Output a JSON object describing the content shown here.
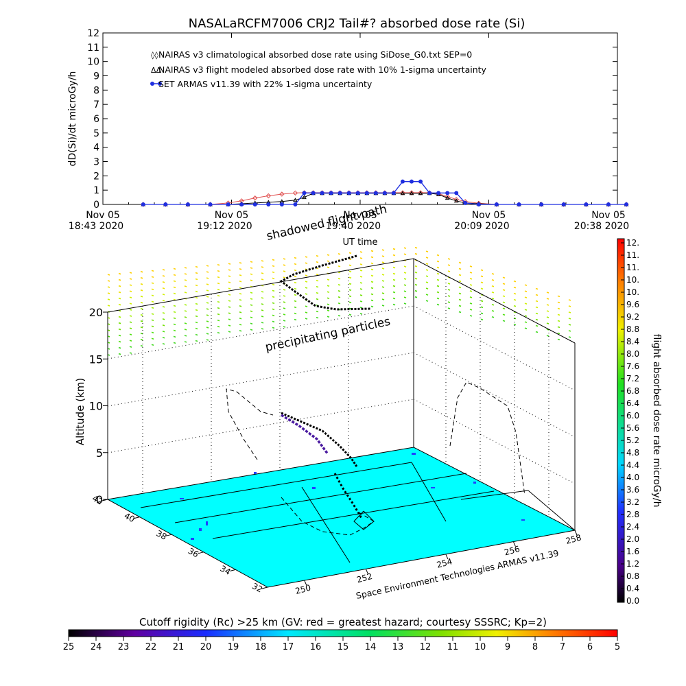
{
  "colors": {
    "climatological": "#e05050",
    "flight_modeled": "#000000",
    "armas": "#1f2fe0",
    "ground": "#00ffff"
  },
  "chart_data": [
    {
      "type": "line",
      "title": "NASALaRCFM7006  CRJ2 Tail#? absorbed dose rate (Si)",
      "xlabel": "UT time",
      "ylabel": "dD(Si)/dt microGy/h",
      "ylim": [
        0,
        12
      ],
      "yticks": [
        "0",
        "1",
        "2",
        "3",
        "4",
        "5",
        "6",
        "7",
        "8",
        "9",
        "10",
        "11",
        "12"
      ],
      "xticks": [
        {
          "line1": "Nov 05",
          "line2": "18:43 2020"
        },
        {
          "line1": "Nov 05",
          "line2": "19:12 2020"
        },
        {
          "line1": "Nov 05",
          "line2": "19:40 2020"
        },
        {
          "line1": "Nov 05",
          "line2": "20:09 2020"
        },
        {
          "line1": "Nov 05",
          "line2": "20:38 2020"
        }
      ],
      "x_unit": "minutes after 18:43 UT",
      "xlim": [
        0,
        115
      ],
      "legend": [
        "NAIRAS v3 climatological absorbed dose rate using SiDose_G0.txt SEP=0",
        "NAIRAS v3 flight modeled absorbed dose rate with 10% 1-sigma uncertainty",
        "SET ARMAS v11.39 with 22% 1-sigma uncertainty"
      ],
      "series": [
        {
          "name": "NAIRAS v3 climatological absorbed dose rate using SiDose_G0.txt SEP=0",
          "x": [
            9,
            14,
            19,
            24,
            28,
            31,
            34,
            37,
            40,
            43,
            45,
            47,
            49,
            51,
            53,
            55,
            57,
            59,
            61,
            63,
            65,
            67,
            69,
            71,
            73,
            75,
            77,
            79,
            81,
            84,
            88,
            93,
            98,
            103,
            108,
            113,
            117
          ],
          "y": [
            0,
            0,
            0,
            0,
            0.1,
            0.25,
            0.45,
            0.6,
            0.72,
            0.8,
            0.82,
            0.82,
            0.82,
            0.82,
            0.82,
            0.82,
            0.82,
            0.82,
            0.82,
            0.82,
            0.82,
            0.82,
            0.82,
            0.82,
            0.82,
            0.75,
            0.55,
            0.35,
            0.2,
            0.08,
            0,
            0,
            0,
            0,
            0,
            0,
            0
          ]
        },
        {
          "name": "NAIRAS v3 flight modeled absorbed dose rate with 10% 1-sigma uncertainty",
          "x": [
            9,
            14,
            19,
            24,
            28,
            31,
            34,
            37,
            40,
            43,
            45,
            47,
            49,
            51,
            53,
            55,
            57,
            59,
            61,
            63,
            65,
            67,
            69,
            71,
            73,
            75,
            77,
            79,
            81,
            84,
            88,
            93,
            98,
            103,
            108,
            113,
            117
          ],
          "y": [
            0,
            0,
            0,
            0,
            0,
            0.05,
            0.1,
            0.15,
            0.2,
            0.3,
            0.5,
            0.78,
            0.78,
            0.78,
            0.78,
            0.78,
            0.78,
            0.78,
            0.78,
            0.78,
            0.78,
            0.78,
            0.78,
            0.78,
            0.78,
            0.7,
            0.45,
            0.25,
            0.1,
            0.05,
            0,
            0,
            0,
            0,
            0,
            0,
            0
          ]
        },
        {
          "name": "SET ARMAS v11.39 with 22% 1-sigma uncertainty",
          "x": [
            9,
            14,
            19,
            24,
            28,
            31,
            34,
            37,
            40,
            43,
            45,
            47,
            49,
            51,
            53,
            55,
            57,
            59,
            61,
            63,
            65,
            67,
            69,
            71,
            73,
            75,
            77,
            79,
            81,
            84,
            88,
            93,
            98,
            103,
            108,
            113,
            117
          ],
          "y": [
            0,
            0,
            0,
            0,
            0,
            0,
            0,
            0,
            0,
            0,
            0.8,
            0.8,
            0.8,
            0.8,
            0.8,
            0.8,
            0.8,
            0.8,
            0.8,
            0.8,
            0.8,
            1.6,
            1.6,
            1.6,
            0.8,
            0.8,
            0.8,
            0.8,
            0.1,
            0,
            0,
            0,
            0,
            0,
            0,
            0,
            0
          ]
        }
      ]
    },
    {
      "type": "scatter",
      "zlabel": "Altitude (km)",
      "zlim": [
        0,
        20
      ],
      "zticks": [
        "0",
        "5",
        "10",
        "15",
        "20"
      ],
      "lat_ticks": [
        "42",
        "40",
        "38",
        "36",
        "34",
        "32"
      ],
      "lon_ticks": [
        "250",
        "252",
        "254",
        "256",
        "258"
      ],
      "annotations": [
        "shadowed flight path",
        "precipitating particles",
        "Space Environment Technologies ARMAS v11.39"
      ],
      "colorbar": {
        "label": "flight absorbed dose rate microGy/h",
        "ticks": [
          "0.0",
          "0.4",
          "0.8",
          "1.2",
          "1.6",
          "2.0",
          "2.4",
          "2.8",
          "3.2",
          "3.6",
          "4.0",
          "4.4",
          "4.8",
          "5.2",
          "5.6",
          "6.0",
          "6.4",
          "6.8",
          "7.2",
          "7.6",
          "8.0",
          "8.4",
          "8.8",
          "9.2",
          "9.6",
          "10.",
          "10.",
          "11.",
          "11.",
          "12."
        ]
      }
    },
    {
      "type": "heatmap",
      "title": "Cutoff rigidity (Rc) >25 km (GV: red = greatest hazard; courtesy SSSRC; Kp=2)",
      "colorbar_ticks": [
        "25",
        "24",
        "23",
        "22",
        "21",
        "20",
        "19",
        "18",
        "17",
        "16",
        "15",
        "14",
        "13",
        "12",
        "11",
        "10",
        "9",
        "8",
        "7",
        "6",
        "5"
      ]
    }
  ]
}
